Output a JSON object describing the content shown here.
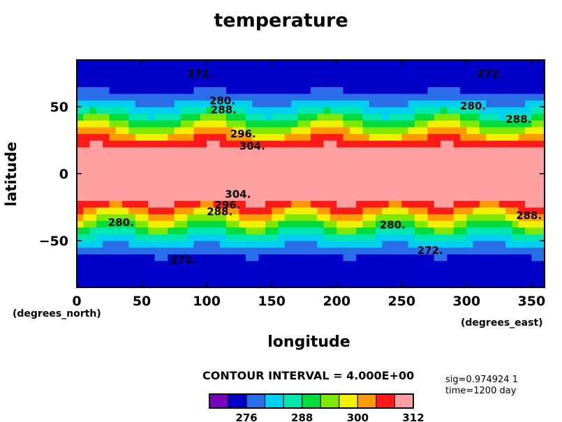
{
  "chart_data": {
    "type": "heatmap",
    "title": "temperature",
    "xlabel": "longitude",
    "ylabel": "latitude",
    "x_unit": "(degrees_east)",
    "y_unit": "(degrees_north)",
    "xlim": [
      0,
      360
    ],
    "ylim": [
      -85,
      85
    ],
    "x_ticks": [
      "0",
      "50",
      "100",
      "150",
      "200",
      "250",
      "300",
      "350"
    ],
    "y_ticks": [
      "50",
      "0",
      "−50"
    ],
    "contour_labels": [
      "272.",
      "272.",
      "280.",
      "280.",
      "288.",
      "288.",
      "296.",
      "304.",
      "304.",
      "296.",
      "288.",
      "280.",
      "280.",
      "288.",
      "272.",
      "272."
    ],
    "levels": [
      264,
      268,
      272,
      276,
      280,
      284,
      288,
      292,
      296,
      300,
      304,
      308,
      312
    ],
    "colorbar_ticks": [
      "276",
      "288",
      "300",
      "312"
    ],
    "colors": [
      "#7b00bb",
      "#0000c8",
      "#2a6de8",
      "#00d0f0",
      "#00e8b0",
      "#00dc3c",
      "#80e800",
      "#f0f000",
      "#ff9a00",
      "#ff1a1a",
      "#ffa0a0"
    ],
    "contour_interval_text": "CONTOUR INTERVAL = 4.000E+00",
    "annotation_sig": "sig=0.974924  1",
    "annotation_time": "time=1200 day"
  }
}
